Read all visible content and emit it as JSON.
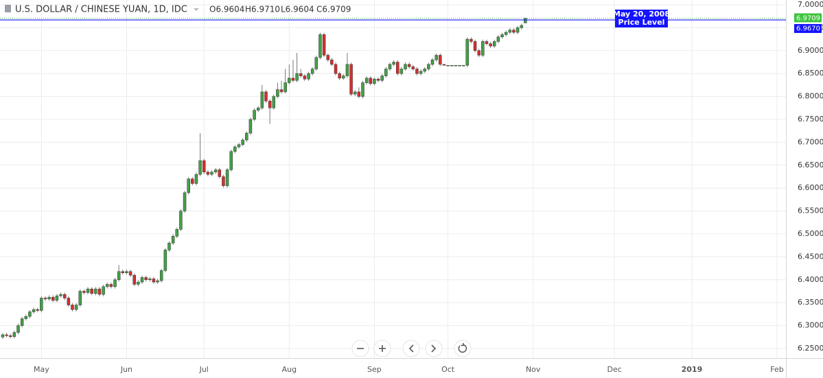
{
  "chart_data": {
    "type": "candlestick",
    "title": "U.S. DOLLAR / CHINESE YUAN, 1D, IDC",
    "ohlc_labels": [
      "O6.9604",
      "H6.9710",
      "L6.9604",
      "C6.9709"
    ],
    "up_color": "#43a047",
    "down_color": "#d32f2f",
    "ylim": [
      6.229,
      7.0105
    ],
    "xlim": [
      -0.7,
      202.3
    ],
    "grid": true,
    "yticks": [
      {
        "value": 6.25,
        "label": "6.2500"
      },
      {
        "value": 6.3,
        "label": "6.3000"
      },
      {
        "value": 6.35,
        "label": "6.3500"
      },
      {
        "value": 6.4,
        "label": "6.4000"
      },
      {
        "value": 6.45,
        "label": "6.4500"
      },
      {
        "value": 6.5,
        "label": "6.5000"
      },
      {
        "value": 6.55,
        "label": "6.5500"
      },
      {
        "value": 6.6,
        "label": "6.6000"
      },
      {
        "value": 6.65,
        "label": "6.6500"
      },
      {
        "value": 6.7,
        "label": "6.7000"
      },
      {
        "value": 6.75,
        "label": "6.7500"
      },
      {
        "value": 6.8,
        "label": "6.8000"
      },
      {
        "value": 6.85,
        "label": "6.8500"
      },
      {
        "value": 6.9,
        "label": "6.9000"
      },
      {
        "value": 6.95,
        "label": "6.9500"
      },
      {
        "value": 7.0,
        "label": "7.0000"
      }
    ],
    "xticks": [
      {
        "value": 10,
        "label": "May"
      },
      {
        "value": 32,
        "label": "Jun"
      },
      {
        "value": 52,
        "label": "Jul"
      },
      {
        "value": 74,
        "label": "Aug"
      },
      {
        "value": 96,
        "label": "Sep"
      },
      {
        "value": 115,
        "label": "Oct"
      },
      {
        "value": 137,
        "label": "Nov"
      },
      {
        "value": 158,
        "label": "Dec"
      },
      {
        "value": 178,
        "label": "2019"
      },
      {
        "value": 200,
        "label": "Feb"
      }
    ],
    "price_line": {
      "value": 6.967,
      "label": "6.9670",
      "color": "#1414ff"
    },
    "last_price": {
      "value": 6.9709,
      "label": "6.9709",
      "color": "#3ec43e"
    },
    "annotation": [
      "May 20, 2008",
      "Price Level"
    ],
    "ohlc": [
      [
        6.275,
        6.284,
        6.271,
        6.28
      ],
      [
        6.28,
        6.284,
        6.274,
        6.278
      ],
      [
        6.278,
        6.282,
        6.272,
        6.276
      ],
      [
        6.276,
        6.289,
        6.272,
        6.285
      ],
      [
        6.285,
        6.304,
        6.281,
        6.3
      ],
      [
        6.3,
        6.319,
        6.296,
        6.315
      ],
      [
        6.315,
        6.324,
        6.311,
        6.32
      ],
      [
        6.32,
        6.334,
        6.316,
        6.33
      ],
      [
        6.33,
        6.339,
        6.326,
        6.335
      ],
      [
        6.335,
        6.339,
        6.329,
        6.333
      ],
      [
        6.333,
        6.364,
        6.329,
        6.36
      ],
      [
        6.36,
        6.364,
        6.354,
        6.358
      ],
      [
        6.358,
        6.366,
        6.354,
        6.362
      ],
      [
        6.362,
        6.366,
        6.351,
        6.355
      ],
      [
        6.355,
        6.369,
        6.351,
        6.365
      ],
      [
        6.365,
        6.372,
        6.361,
        6.368
      ],
      [
        6.368,
        6.372,
        6.356,
        6.36
      ],
      [
        6.36,
        6.364,
        6.341,
        6.345
      ],
      [
        6.345,
        6.349,
        6.331,
        6.335
      ],
      [
        6.335,
        6.349,
        6.331,
        6.345
      ],
      [
        6.345,
        6.379,
        6.341,
        6.375
      ],
      [
        6.375,
        6.379,
        6.368,
        6.372
      ],
      [
        6.372,
        6.384,
        6.368,
        6.38
      ],
      [
        6.38,
        6.384,
        6.366,
        6.37
      ],
      [
        6.37,
        6.384,
        6.366,
        6.38
      ],
      [
        6.38,
        6.384,
        6.364,
        6.368
      ],
      [
        6.368,
        6.389,
        6.364,
        6.385
      ],
      [
        6.385,
        6.394,
        6.381,
        6.39
      ],
      [
        6.39,
        6.394,
        6.381,
        6.385
      ],
      [
        6.385,
        6.404,
        6.381,
        6.4
      ],
      [
        6.4,
        6.432,
        6.396,
        6.418
      ],
      [
        6.418,
        6.422,
        6.411,
        6.415
      ],
      [
        6.415,
        6.422,
        6.411,
        6.418
      ],
      [
        6.418,
        6.422,
        6.406,
        6.41
      ],
      [
        6.41,
        6.414,
        6.386,
        6.39
      ],
      [
        6.39,
        6.399,
        6.386,
        6.395
      ],
      [
        6.395,
        6.409,
        6.391,
        6.405
      ],
      [
        6.405,
        6.409,
        6.396,
        6.4
      ],
      [
        6.4,
        6.406,
        6.396,
        6.402
      ],
      [
        6.402,
        6.406,
        6.391,
        6.395
      ],
      [
        6.395,
        6.402,
        6.391,
        6.398
      ],
      [
        6.398,
        6.424,
        6.394,
        6.42
      ],
      [
        6.42,
        6.469,
        6.416,
        6.465
      ],
      [
        6.465,
        6.484,
        6.461,
        6.48
      ],
      [
        6.48,
        6.499,
        6.476,
        6.495
      ],
      [
        6.495,
        6.514,
        6.491,
        6.51
      ],
      [
        6.51,
        6.554,
        6.506,
        6.55
      ],
      [
        6.55,
        6.594,
        6.546,
        6.59
      ],
      [
        6.59,
        6.624,
        6.586,
        6.62
      ],
      [
        6.62,
        6.624,
        6.606,
        6.61
      ],
      [
        6.61,
        6.634,
        6.606,
        6.63
      ],
      [
        6.63,
        6.72,
        6.626,
        6.66
      ],
      [
        6.66,
        6.664,
        6.631,
        6.635
      ],
      [
        6.635,
        6.639,
        6.626,
        6.63
      ],
      [
        6.63,
        6.639,
        6.626,
        6.635
      ],
      [
        6.635,
        6.644,
        6.631,
        6.64
      ],
      [
        6.64,
        6.644,
        6.621,
        6.625
      ],
      [
        6.625,
        6.629,
        6.601,
        6.605
      ],
      [
        6.605,
        6.644,
        6.601,
        6.64
      ],
      [
        6.64,
        6.684,
        6.636,
        6.68
      ],
      [
        6.68,
        6.694,
        6.676,
        6.69
      ],
      [
        6.69,
        6.699,
        6.686,
        6.695
      ],
      [
        6.695,
        6.709,
        6.691,
        6.705
      ],
      [
        6.705,
        6.724,
        6.701,
        6.72
      ],
      [
        6.72,
        6.754,
        6.716,
        6.75
      ],
      [
        6.75,
        6.774,
        6.746,
        6.77
      ],
      [
        6.77,
        6.779,
        6.766,
        6.775
      ],
      [
        6.775,
        6.825,
        6.771,
        6.81
      ],
      [
        6.81,
        6.814,
        6.786,
        6.79
      ],
      [
        6.79,
        6.794,
        6.74,
        6.775
      ],
      [
        6.775,
        6.804,
        6.771,
        6.8
      ],
      [
        6.8,
        6.83,
        6.796,
        6.815
      ],
      [
        6.815,
        6.834,
        6.806,
        6.81
      ],
      [
        6.81,
        6.86,
        6.806,
        6.83
      ],
      [
        6.83,
        6.87,
        6.826,
        6.84
      ],
      [
        6.84,
        6.88,
        6.831,
        6.835
      ],
      [
        6.835,
        6.895,
        6.831,
        6.85
      ],
      [
        6.85,
        6.86,
        6.841,
        6.845
      ],
      [
        6.845,
        6.849,
        6.834,
        6.838
      ],
      [
        6.838,
        6.854,
        6.834,
        6.85
      ],
      [
        6.85,
        6.864,
        6.846,
        6.86
      ],
      [
        6.86,
        6.889,
        6.856,
        6.885
      ],
      [
        6.885,
        6.939,
        6.881,
        6.935
      ],
      [
        6.935,
        6.939,
        6.886,
        6.89
      ],
      [
        6.89,
        6.894,
        6.876,
        6.88
      ],
      [
        6.88,
        6.884,
        6.866,
        6.87
      ],
      [
        6.87,
        6.874,
        6.846,
        6.85
      ],
      [
        6.85,
        6.854,
        6.836,
        6.84
      ],
      [
        6.84,
        6.849,
        6.836,
        6.845
      ],
      [
        6.845,
        6.895,
        6.841,
        6.87
      ],
      [
        6.87,
        6.874,
        6.801,
        6.805
      ],
      [
        6.805,
        6.814,
        6.801,
        6.81
      ],
      [
        6.81,
        6.82,
        6.796,
        6.8
      ],
      [
        6.8,
        6.834,
        6.796,
        6.83
      ],
      [
        6.83,
        6.844,
        6.826,
        6.84
      ],
      [
        6.84,
        6.844,
        6.824,
        6.828
      ],
      [
        6.828,
        6.842,
        6.824,
        6.838
      ],
      [
        6.838,
        6.842,
        6.831,
        6.835
      ],
      [
        6.835,
        6.849,
        6.831,
        6.845
      ],
      [
        6.845,
        6.864,
        6.841,
        6.86
      ],
      [
        6.86,
        6.874,
        6.856,
        6.87
      ],
      [
        6.87,
        6.879,
        6.866,
        6.875
      ],
      [
        6.875,
        6.879,
        6.846,
        6.85
      ],
      [
        6.85,
        6.864,
        6.846,
        6.86
      ],
      [
        6.86,
        6.874,
        6.856,
        6.87
      ],
      [
        6.87,
        6.874,
        6.861,
        6.865
      ],
      [
        6.865,
        6.869,
        6.856,
        6.86
      ],
      [
        6.86,
        6.864,
        6.846,
        6.85
      ],
      [
        6.85,
        6.859,
        6.846,
        6.855
      ],
      [
        6.855,
        6.864,
        6.851,
        6.86
      ],
      [
        6.86,
        6.874,
        6.856,
        6.87
      ],
      [
        6.87,
        6.884,
        6.866,
        6.88
      ],
      [
        6.88,
        6.894,
        6.876,
        6.89
      ],
      [
        6.89,
        6.894,
        6.866,
        6.87
      ],
      [
        6.87,
        6.87,
        6.868,
        6.868
      ],
      [
        6.868,
        6.868,
        6.868,
        6.868
      ],
      [
        6.868,
        6.868,
        6.868,
        6.868
      ],
      [
        6.868,
        6.868,
        6.868,
        6.868
      ],
      [
        6.868,
        6.868,
        6.868,
        6.868
      ],
      [
        6.868,
        6.868,
        6.868,
        6.868
      ],
      [
        6.868,
        6.929,
        6.864,
        6.925
      ],
      [
        6.925,
        6.929,
        6.916,
        6.92
      ],
      [
        6.92,
        6.924,
        6.896,
        6.9
      ],
      [
        6.9,
        6.904,
        6.886,
        6.89
      ],
      [
        6.89,
        6.924,
        6.886,
        6.92
      ],
      [
        6.92,
        6.924,
        6.911,
        6.915
      ],
      [
        6.915,
        6.919,
        6.906,
        6.91
      ],
      [
        6.91,
        6.924,
        6.906,
        6.92
      ],
      [
        6.92,
        6.934,
        6.916,
        6.93
      ],
      [
        6.93,
        6.939,
        6.926,
        6.935
      ],
      [
        6.935,
        6.944,
        6.931,
        6.94
      ],
      [
        6.94,
        6.949,
        6.936,
        6.945
      ],
      [
        6.945,
        6.949,
        6.936,
        6.94
      ],
      [
        6.94,
        6.954,
        6.936,
        6.95
      ],
      [
        6.95,
        6.959,
        6.946,
        6.955
      ],
      [
        6.9604,
        6.971,
        6.9604,
        6.9709
      ]
    ]
  }
}
